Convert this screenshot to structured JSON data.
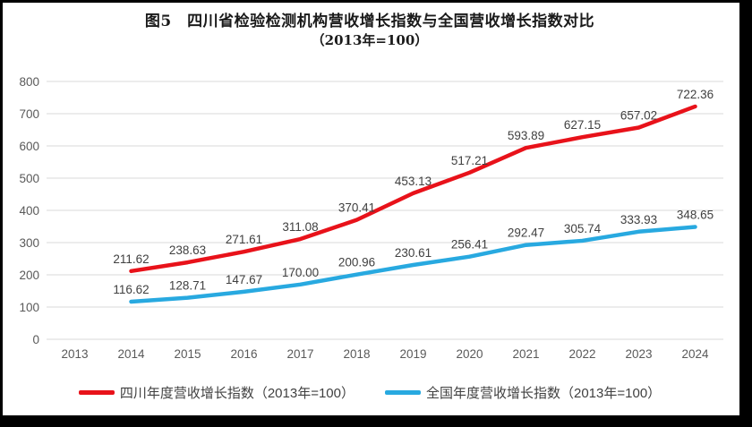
{
  "title": {
    "line1": "图5　四川省检验检测机构营收增长指数与全国营收增长指数对比",
    "line2": "（2013年=100）"
  },
  "chart_data": {
    "type": "line",
    "categories": [
      "2013",
      "2014",
      "2015",
      "2016",
      "2017",
      "2018",
      "2019",
      "2020",
      "2021",
      "2022",
      "2023",
      "2024"
    ],
    "series": [
      {
        "name": "四川年度营收增长指数（2013年=100）",
        "color": "#e8121a",
        "values": [
          null,
          211.62,
          238.63,
          271.61,
          311.08,
          370.41,
          453.13,
          517.21,
          593.89,
          627.15,
          657.02,
          722.36
        ]
      },
      {
        "name": "全国年度营收增长指数（2013年=100）",
        "color": "#28a9e0",
        "values": [
          null,
          116.62,
          128.71,
          147.67,
          170.0,
          200.96,
          230.61,
          256.41,
          292.47,
          305.74,
          333.93,
          348.65
        ]
      }
    ],
    "ylim": [
      0,
      800
    ],
    "ytick_step": 100,
    "yticks": [
      "0",
      "100",
      "200",
      "300",
      "400",
      "500",
      "600",
      "700",
      "800"
    ],
    "grid": true,
    "legend_position": "bottom",
    "xlabel": "",
    "ylabel": ""
  },
  "colors": {
    "grid": "#d9d9d9",
    "axis_text": "#595959",
    "data_label_text": "#404040",
    "frame": "#000000",
    "background": "#ffffff"
  }
}
